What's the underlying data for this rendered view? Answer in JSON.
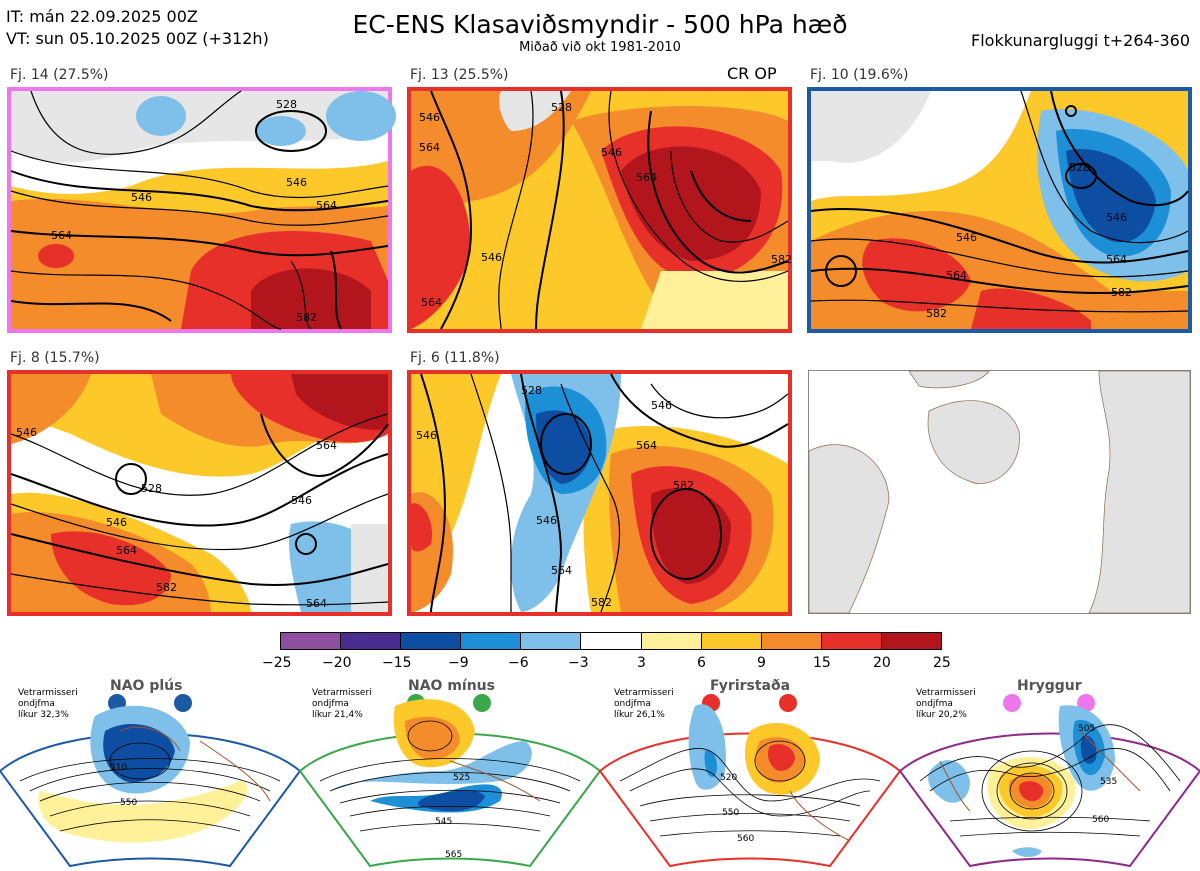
{
  "header": {
    "it_line": "IT: mán 22.09.2025 00Z",
    "vt_line": "VT: sun 05.10.2025 00Z  (+312h)",
    "title": "EC-ENS Klasaviðsmyndir - 500 hPa hæð",
    "subtitle": "Miðað við okt 1981-2010",
    "window": "Flokkunargluggi t+264-360"
  },
  "panels": [
    {
      "label": "Fj. 14 (27.5%)",
      "border": "#ee77ee",
      "contours": [
        "528",
        "546",
        "564",
        "546",
        "564",
        "582"
      ],
      "extra": ""
    },
    {
      "label": "Fj. 13 (25.5%)",
      "border": "#e8302a",
      "contours": [
        "546",
        "564",
        "546",
        "528",
        "564",
        "546",
        "564",
        "582"
      ],
      "extra": "CR OP"
    },
    {
      "label": "Fj. 10 (19.6%)",
      "border": "#1c5aa6",
      "contours": [
        "528",
        "546",
        "546",
        "564",
        "564",
        "582",
        "582"
      ],
      "extra": ""
    },
    {
      "label": "Fj. 8 (15.7%)",
      "border": "#e8302a",
      "contours": [
        "546",
        "528",
        "546",
        "564",
        "582",
        "564",
        "564",
        "546"
      ],
      "extra": ""
    },
    {
      "label": "Fj. 6 (11.8%)",
      "border": "#e8302a",
      "contours": [
        "546",
        "546",
        "564",
        "582",
        "564",
        "546",
        "582",
        "528"
      ],
      "extra": ""
    }
  ],
  "colorbar": {
    "ticks": [
      "−25",
      "−20",
      "−15",
      "−9",
      "−6",
      "−3",
      "3",
      "6",
      "9",
      "15",
      "20",
      "25"
    ],
    "colors": [
      "#8e4fa0",
      "#4a2e8f",
      "#0d4ea3",
      "#1d8fd6",
      "#7ec0ea",
      "#ffffff",
      "#fff19a",
      "#fcc82a",
      "#f48c2b",
      "#e8302a",
      "#b2161c"
    ]
  },
  "regimes": [
    {
      "title": "NAO plús",
      "text": [
        "Vetrarmisseri",
        "ondjfma",
        "líkur 32,3%"
      ],
      "color": "#1c5aa6",
      "dot_color": "#1c5aa6",
      "contours": [
        "510",
        "550"
      ]
    },
    {
      "title": "NAO mínus",
      "text": [
        "Vetrarmisseri",
        "ondjfma",
        "líkur 21,4%"
      ],
      "color": "#3aa84a",
      "dot_color": "#3aa84a",
      "contours": [
        "525",
        "545",
        "565"
      ]
    },
    {
      "title": "Fyrirstaða",
      "text": [
        "Vetrarmisseri",
        "ondjfma",
        "líkur 26,1%"
      ],
      "color": "#e8302a",
      "dot_color": "#e8302a",
      "contours": [
        "520",
        "550",
        "560"
      ]
    },
    {
      "title": "Hryggur",
      "text": [
        "Vetrarmisseri",
        "ondjfma",
        "líkur 20,2%"
      ],
      "color": "#8e2a8a",
      "dot_color": "#ee77ee",
      "contours": [
        "505",
        "535",
        "560"
      ]
    }
  ]
}
